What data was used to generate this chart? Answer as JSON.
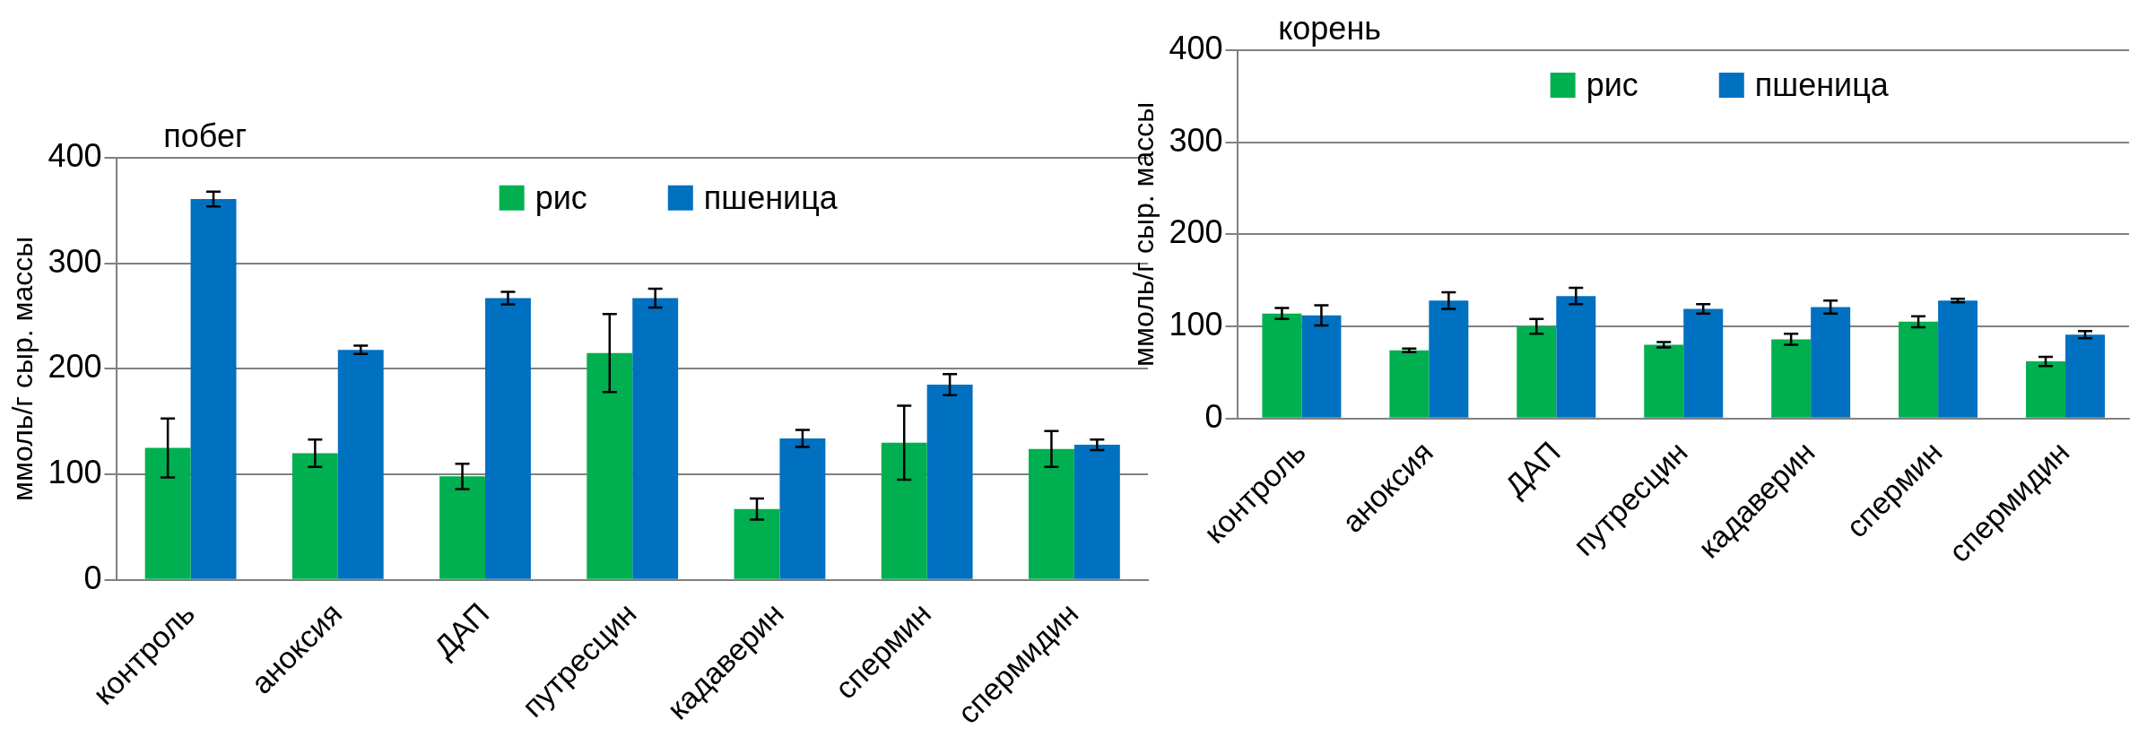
{
  "chart_data": [
    {
      "type": "bar",
      "title": "побег",
      "ylabel": "ммоль/г сыр. массы",
      "categories": [
        "контроль",
        "аноксия",
        "ДАП",
        "путресцин",
        "кадаверин",
        "спермин",
        "спермидин"
      ],
      "series": [
        {
          "name": "рис",
          "color": "#00b050",
          "values": [
            125,
            120,
            98,
            215,
            67,
            130,
            124
          ],
          "errors": [
            28,
            13,
            12,
            37,
            10,
            35,
            17
          ]
        },
        {
          "name": "пшеница",
          "color": "#0070c0",
          "values": [
            361,
            218,
            267,
            267,
            134,
            185,
            128
          ],
          "errors": [
            7,
            4,
            6,
            9,
            8,
            10,
            5
          ]
        }
      ],
      "ylim": [
        0,
        400
      ],
      "yticks": [
        0,
        100,
        200,
        300,
        400
      ],
      "grid": "y",
      "legend": "top"
    },
    {
      "type": "bar",
      "title": "корень",
      "ylabel": "ммоль/г сыр. массы",
      "categories": [
        "контроль",
        "аноксия",
        "ДАП",
        "путресцин",
        "кадаверин",
        "спермин",
        "спермидин"
      ],
      "series": [
        {
          "name": "рис",
          "color": "#00b050",
          "values": [
            114,
            74,
            100,
            80,
            86,
            105,
            62
          ],
          "errors": [
            6,
            2,
            8,
            3,
            6,
            6,
            5
          ]
        },
        {
          "name": "пшеница",
          "color": "#0070c0",
          "values": [
            112,
            128,
            133,
            119,
            121,
            128,
            91
          ],
          "errors": [
            11,
            9,
            9,
            5,
            7,
            2,
            4
          ]
        }
      ],
      "ylim": [
        0,
        400
      ],
      "yticks": [
        0,
        100,
        200,
        300,
        400
      ],
      "grid": "y",
      "legend": "top"
    }
  ]
}
